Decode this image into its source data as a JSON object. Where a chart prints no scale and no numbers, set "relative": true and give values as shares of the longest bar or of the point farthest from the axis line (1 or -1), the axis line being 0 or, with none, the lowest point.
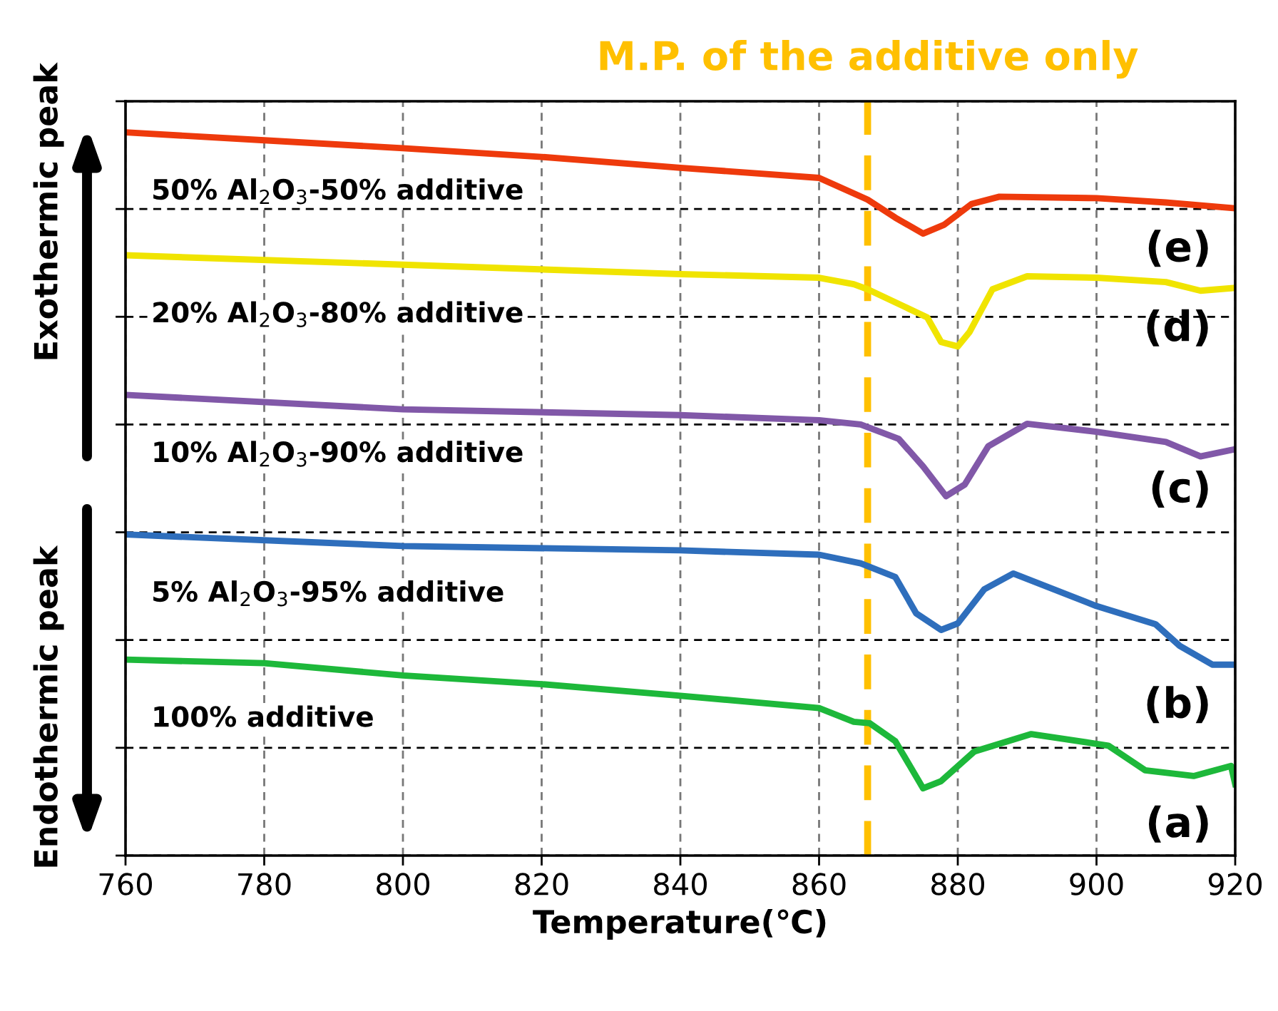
{
  "chart_data": {
    "type": "line",
    "relative": true,
    "xlabel": "Temperature(℃)",
    "xlim": [
      760,
      920
    ],
    "xticks": [
      760,
      780,
      800,
      820,
      840,
      860,
      880,
      900,
      920
    ],
    "grid": true,
    "line_style": "solid",
    "marker": "none",
    "series": [
      {
        "name": "50% Al$_{2}$O$_{3}$-50% additive",
        "color": "#ee3a0c",
        "x": [
          760,
          780,
          800,
          820,
          840,
          860,
          867,
          871,
          875,
          878,
          882,
          886,
          900,
          910,
          920
        ],
        "values": [
          1.0,
          0.989,
          0.978,
          0.966,
          0.951,
          0.937,
          0.907,
          0.882,
          0.86,
          0.872,
          0.901,
          0.911,
          0.909,
          0.903,
          0.895
        ]
      },
      {
        "name": "20% Al$_{2}$O$_{3}$-80% additive",
        "color": "#f0e400",
        "x": [
          760,
          800,
          840,
          860,
          865,
          867,
          875.6,
          877.6,
          880,
          881.7,
          885,
          890,
          900,
          910,
          915,
          920
        ],
        "values": [
          0.83,
          0.817,
          0.804,
          0.799,
          0.79,
          0.783,
          0.744,
          0.71,
          0.704,
          0.724,
          0.783,
          0.801,
          0.799,
          0.793,
          0.781,
          0.785
        ]
      },
      {
        "name": "10% Al$_{2}$O$_{3}$-90% additive",
        "color": "#8158a8",
        "x": [
          760,
          800,
          840,
          860,
          866,
          871.5,
          875,
          878.3,
          881,
          884.4,
          890,
          900,
          910,
          915,
          920
        ],
        "values": [
          0.637,
          0.617,
          0.609,
          0.602,
          0.596,
          0.576,
          0.538,
          0.497,
          0.513,
          0.566,
          0.597,
          0.586,
          0.572,
          0.552,
          0.562
        ]
      },
      {
        "name": "5% Al$_{2}$O$_{3}$-95% additive",
        "color": "#2e6ebc",
        "x": [
          760,
          800,
          840,
          860,
          866,
          871,
          874,
          877.6,
          880,
          883.8,
          888,
          900,
          908.5,
          912,
          916.7,
          920
        ],
        "values": [
          0.444,
          0.428,
          0.422,
          0.416,
          0.404,
          0.385,
          0.335,
          0.312,
          0.321,
          0.368,
          0.39,
          0.345,
          0.32,
          0.29,
          0.264,
          0.264
        ]
      },
      {
        "name": "100% additive",
        "color": "#1db83a",
        "x": [
          760,
          780,
          800,
          820,
          840,
          860,
          865,
          867.3,
          871,
          875,
          877.6,
          882.4,
          890.6,
          901.7,
          907,
          914,
          919.4,
          920
        ],
        "values": [
          0.271,
          0.266,
          0.249,
          0.237,
          0.221,
          0.204,
          0.185,
          0.183,
          0.158,
          0.093,
          0.103,
          0.144,
          0.168,
          0.152,
          0.118,
          0.11,
          0.124,
          0.099
        ]
      }
    ],
    "ref_lines": [
      {
        "axis": "x",
        "value": 867,
        "label": "M.P. of the additive only",
        "color": "#ffc000",
        "line_style": "dashed"
      }
    ],
    "annotations": [
      "Exothermic peak",
      "Endothermic peak",
      "(e)",
      "(d)",
      "(c)",
      "(b)",
      "(a)"
    ]
  }
}
